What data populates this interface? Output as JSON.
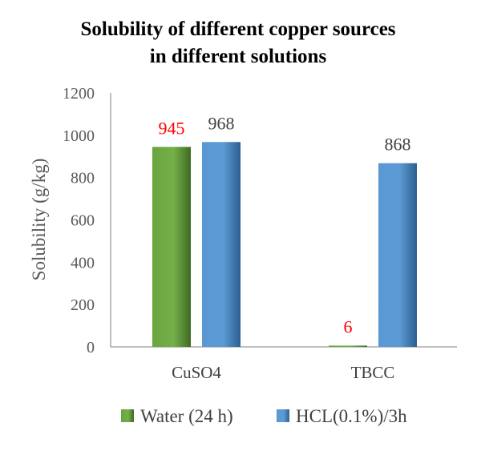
{
  "chart_data": {
    "type": "bar",
    "title_lines": [
      "Solubility of different copper sources",
      "in different solutions"
    ],
    "ylabel": "Solubility (g/kg)",
    "xlabel": "",
    "ylim": [
      0,
      1200
    ],
    "yticks": [
      0,
      200,
      400,
      600,
      800,
      1000,
      1200
    ],
    "categories": [
      "CuSO4",
      "TBCC"
    ],
    "series": [
      {
        "name": "Water (24 h)",
        "values": [
          945,
          6
        ],
        "color": "#70ad47",
        "label_color": "#ff0000"
      },
      {
        "name": "HCL(0.1%)/3h",
        "values": [
          968,
          868
        ],
        "color": "#5b9bd5",
        "label_color": "#404040"
      }
    ],
    "grid": false,
    "legend_position": "bottom"
  }
}
